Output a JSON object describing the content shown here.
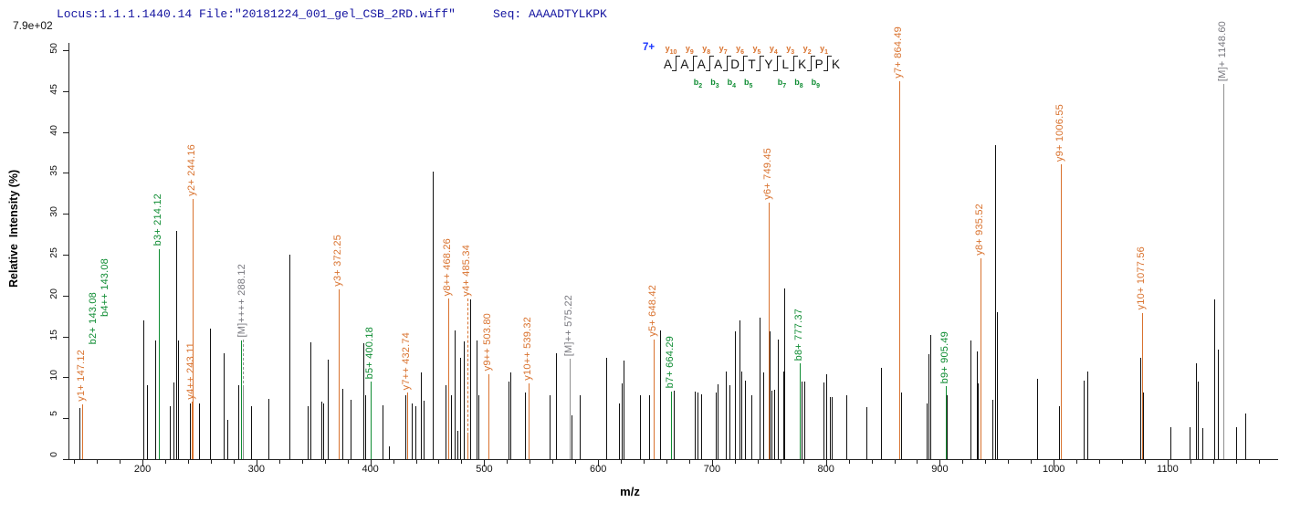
{
  "header": {
    "locus": "Locus:1.1.1.1440.14 File:\"20181224_001_gel_CSB_2RD.wiff\"",
    "seq": "Seq: AAAADTYLKPK"
  },
  "axes": {
    "scale_label": "7.9e+02",
    "ylabel": "Relative  Intensity (%)",
    "xlabel": "m/z"
  },
  "ladder": {
    "charge": "7+",
    "residues": [
      "A",
      "A",
      "A",
      "A",
      "D",
      "T",
      "Y",
      "L",
      "K",
      "P",
      "K"
    ],
    "boundaries": [
      {
        "y": "y10",
        "b": null
      },
      {
        "y": "y9",
        "b": "b2"
      },
      {
        "y": "y8",
        "b": "b3"
      },
      {
        "y": "y7",
        "b": "b4"
      },
      {
        "y": "y6",
        "b": "b5"
      },
      {
        "y": "y5",
        "b": null
      },
      {
        "y": "y4",
        "b": "b7"
      },
      {
        "y": "y3",
        "b": "b8"
      },
      {
        "y": "y2",
        "b": "b9"
      },
      {
        "y": "y1",
        "b": null
      }
    ]
  },
  "colors": {
    "y_ion": "#d9722e",
    "b_ion": "#0e8c32",
    "precursor_line": "#8f8f8f",
    "precursor_text": "#77777e",
    "black_peak": "#111111",
    "header_navy": "#1414a0",
    "charge_blue": "#1a35ff"
  },
  "chart_data": {
    "type": "bar",
    "title": "MS/MS fragmentation spectrum of peptide AAAADTYLKPK",
    "xlabel": "m/z",
    "ylabel": "Relative  Intensity (%)",
    "xlim": [
      135,
      1197
    ],
    "ylim": [
      0,
      50
    ],
    "grid": false,
    "y_ticks": [
      0,
      5,
      10,
      15,
      20,
      25,
      30,
      35,
      40,
      45,
      50
    ],
    "x_major_ticks": [
      200,
      300,
      400,
      500,
      600,
      700,
      800,
      900,
      1000,
      1100
    ],
    "x_minor_step": 20,
    "labeled_peaks": [
      {
        "label": "y1+ 147.12",
        "mz": 147.12,
        "pct": 6.7,
        "ion": "y"
      },
      {
        "label": "b2+ 143.08",
        "mz": 143.08,
        "pct": null,
        "ion": "b",
        "float_mz": 157.6,
        "label_bottom_pct": 13.7
      },
      {
        "label": "b4++ 143.08",
        "mz": 143.08,
        "pct": null,
        "ion": "b",
        "float_mz": 168.0,
        "label_bottom_pct": 17.1
      },
      {
        "label": "b3+ 214.12",
        "mz": 214.12,
        "pct": 25.7,
        "ion": "b"
      },
      {
        "label": "y4++ 243.11",
        "mz": 243.11,
        "pct": 7.0,
        "ion": "y"
      },
      {
        "label": "y2+ 244.16",
        "mz": 244.16,
        "pct": 31.8,
        "ion": "y"
      },
      {
        "label": "[M]++++ 288.12",
        "mz": 288.12,
        "pct": 8.7,
        "ion": "M",
        "dashed_to_pct": 14.6
      },
      {
        "label": "y3+ 372.25",
        "mz": 372.25,
        "pct": 20.8,
        "ion": "y"
      },
      {
        "label": "b5+ 400.18",
        "mz": 400.18,
        "pct": 9.5,
        "ion": "b"
      },
      {
        "label": "y7++ 432.74",
        "mz": 432.74,
        "pct": 8.1,
        "ion": "y"
      },
      {
        "label": "y8++ 468.26",
        "mz": 468.26,
        "pct": 19.6,
        "ion": "y"
      },
      {
        "label": "y4+ 485.34",
        "mz": 485.34,
        "pct": 2.9,
        "ion": "y",
        "dashed_to_pct": 19.6
      },
      {
        "label": "y9++ 503.80",
        "mz": 503.8,
        "pct": 10.4,
        "ion": "y"
      },
      {
        "label": "y10++ 539.32",
        "mz": 539.32,
        "pct": 9.3,
        "ion": "y"
      },
      {
        "label": "[M]++ 575.22",
        "mz": 575.22,
        "pct": 12.3,
        "ion": "M"
      },
      {
        "label": "y5+ 648.42",
        "mz": 648.42,
        "pct": 14.6,
        "ion": "y"
      },
      {
        "label": "b7+ 664.29",
        "mz": 664.29,
        "pct": 8.3,
        "ion": "b"
      },
      {
        "label": "y6+ 749.45",
        "mz": 749.45,
        "pct": 31.4,
        "ion": "y"
      },
      {
        "label": "b8+ 777.37",
        "mz": 777.37,
        "pct": 11.7,
        "ion": "b"
      },
      {
        "label": "y7+ 864.49",
        "mz": 864.49,
        "pct": 46.2,
        "ion": "y"
      },
      {
        "label": "b9+ 905.49",
        "mz": 905.49,
        "pct": 8.9,
        "ion": "b"
      },
      {
        "label": "y8+ 935.52",
        "mz": 935.52,
        "pct": 24.6,
        "ion": "y"
      },
      {
        "label": "y9+ 1006.55",
        "mz": 1006.55,
        "pct": 36.0,
        "ion": "y"
      },
      {
        "label": "y10+ 1077.56",
        "mz": 1077.56,
        "pct": 17.9,
        "ion": "y"
      },
      {
        "label": "[M]+ 1148.60",
        "mz": 1148.6,
        "pct": 45.9,
        "ion": "M"
      }
    ],
    "unlabeled_green_peaks": [
      [
        286.2,
        14.5
      ]
    ],
    "unlabeled_peaks": [
      [
        144.7,
        6.3
      ],
      [
        201.0,
        17.0
      ],
      [
        204.2,
        9.0
      ],
      [
        211.4,
        14.5
      ],
      [
        224.2,
        6.5
      ],
      [
        227.4,
        9.4
      ],
      [
        229.9,
        27.9
      ],
      [
        231.5,
        14.5
      ],
      [
        241.9,
        6.8
      ],
      [
        250.0,
        6.8
      ],
      [
        259.6,
        16.0
      ],
      [
        271.6,
        12.9
      ],
      [
        274.8,
        4.8
      ],
      [
        283.7,
        9.0
      ],
      [
        295.7,
        6.5
      ],
      [
        310.5,
        7.4
      ],
      [
        328.6,
        25.0
      ],
      [
        344.7,
        6.5
      ],
      [
        347.1,
        14.3
      ],
      [
        356.7,
        7.0
      ],
      [
        358.3,
        6.8
      ],
      [
        362.3,
        12.2
      ],
      [
        375.2,
        8.6
      ],
      [
        382.4,
        7.3
      ],
      [
        393.6,
        14.2
      ],
      [
        395.2,
        7.8
      ],
      [
        410.5,
        6.6
      ],
      [
        416.1,
        1.6
      ],
      [
        430.6,
        7.8
      ],
      [
        436.2,
        6.8
      ],
      [
        439.4,
        6.5
      ],
      [
        444.2,
        10.6
      ],
      [
        446.6,
        7.2
      ],
      [
        454.7,
        35.2
      ],
      [
        466.0,
        9.0
      ],
      [
        470.8,
        7.8
      ],
      [
        474.0,
        15.7
      ],
      [
        476.4,
        3.5
      ],
      [
        478.8,
        12.4
      ],
      [
        482.0,
        14.4
      ],
      [
        487.7,
        19.5
      ],
      [
        493.3,
        14.5
      ],
      [
        494.9,
        7.8
      ],
      [
        521.4,
        9.5
      ],
      [
        523.0,
        10.6
      ],
      [
        535.8,
        8.1
      ],
      [
        557.5,
        7.8
      ],
      [
        563.1,
        12.9
      ],
      [
        576.8,
        5.4
      ],
      [
        584.0,
        7.8
      ],
      [
        607.3,
        12.4
      ],
      [
        618.6,
        6.8
      ],
      [
        620.9,
        9.3
      ],
      [
        622.4,
        12.1
      ],
      [
        637.0,
        7.8
      ],
      [
        645.0,
        7.8
      ],
      [
        654.7,
        15.7
      ],
      [
        666.0,
        8.4
      ],
      [
        685.2,
        8.3
      ],
      [
        687.6,
        8.1
      ],
      [
        690.8,
        7.9
      ],
      [
        702.9,
        8.1
      ],
      [
        704.5,
        9.2
      ],
      [
        711.7,
        10.7
      ],
      [
        714.9,
        9.0
      ],
      [
        720.5,
        15.6
      ],
      [
        723.8,
        17.0
      ],
      [
        725.4,
        10.7
      ],
      [
        728.6,
        9.6
      ],
      [
        734.2,
        7.8
      ],
      [
        741.4,
        17.3
      ],
      [
        744.6,
        10.6
      ],
      [
        750.3,
        15.6
      ],
      [
        751.9,
        8.4
      ],
      [
        754.3,
        8.5
      ],
      [
        757.5,
        14.6
      ],
      [
        762.3,
        10.7
      ],
      [
        763.1,
        20.9
      ],
      [
        778.4,
        9.5
      ],
      [
        780.8,
        9.5
      ],
      [
        797.7,
        9.4
      ],
      [
        800.1,
        10.4
      ],
      [
        803.3,
        7.6
      ],
      [
        804.9,
        7.6
      ],
      [
        817.8,
        7.8
      ],
      [
        835.4,
        6.4
      ],
      [
        848.3,
        11.2
      ],
      [
        866.1,
        8.1
      ],
      [
        888.4,
        6.8
      ],
      [
        890.0,
        12.8
      ],
      [
        891.6,
        15.2
      ],
      [
        906.1,
        7.8
      ],
      [
        926.9,
        14.5
      ],
      [
        932.5,
        13.2
      ],
      [
        933.7,
        9.3
      ],
      [
        935.7,
        4.8
      ],
      [
        946.1,
        7.3
      ],
      [
        948.5,
        38.4
      ],
      [
        950.1,
        18.0
      ],
      [
        985.5,
        9.8
      ],
      [
        1004.7,
        6.5
      ],
      [
        1026.4,
        9.6
      ],
      [
        1029.6,
        10.7
      ],
      [
        1076.1,
        12.4
      ],
      [
        1078.5,
        8.1
      ],
      [
        1102.6,
        3.9
      ],
      [
        1119.5,
        3.9
      ],
      [
        1125.1,
        11.7
      ],
      [
        1126.7,
        9.5
      ],
      [
        1130.7,
        3.8
      ],
      [
        1141.2,
        19.5
      ],
      [
        1144.4,
        13.4
      ],
      [
        1160.4,
        3.9
      ],
      [
        1168.5,
        5.6
      ]
    ]
  }
}
